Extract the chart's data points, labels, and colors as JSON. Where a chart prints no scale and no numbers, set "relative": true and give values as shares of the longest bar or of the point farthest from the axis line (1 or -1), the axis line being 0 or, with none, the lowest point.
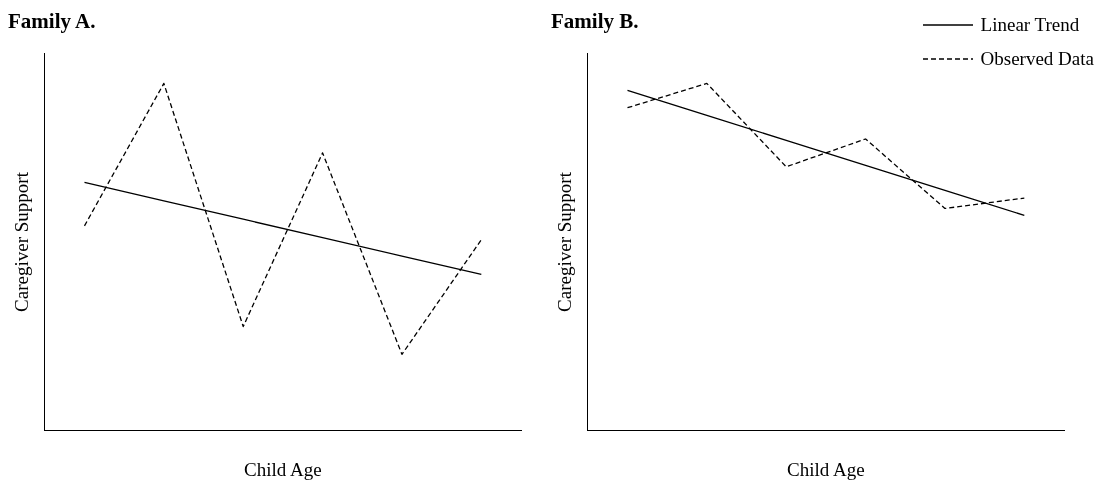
{
  "chart_data": [
    {
      "type": "line",
      "title": "Family A.",
      "xlabel": "Child Age",
      "ylabel": "Caregiver Support",
      "relative": true,
      "categories": [
        null,
        null,
        null,
        null,
        null,
        null
      ],
      "legend": false,
      "marker": "none",
      "series": [
        {
          "color": "#000000",
          "line_style": "solid",
          "values": [
            0.715,
            0.662,
            0.609,
            0.556,
            0.503,
            0.45
          ]
        },
        {
          "color": "#000000",
          "line_style": "dashed",
          "values": [
            0.59,
            1,
            0.3,
            0.8,
            0.22,
            0.55
          ]
        }
      ]
    },
    {
      "type": "line",
      "title": "Family B.",
      "xlabel": "Child Age",
      "ylabel": "Caregiver Support",
      "relative": true,
      "categories": [
        null,
        null,
        null,
        null,
        null,
        null
      ],
      "legend": "top right",
      "marker": "none",
      "series": [
        {
          "name": "Linear Trend",
          "color": "#000000",
          "line_style": "solid",
          "values": [
            0.98,
            0.908,
            0.836,
            0.764,
            0.692,
            0.62
          ]
        },
        {
          "name": "Observed Data",
          "color": "#000000",
          "line_style": "dashed",
          "values": [
            0.93,
            1,
            0.76,
            0.84,
            0.64,
            0.67
          ]
        }
      ]
    }
  ]
}
